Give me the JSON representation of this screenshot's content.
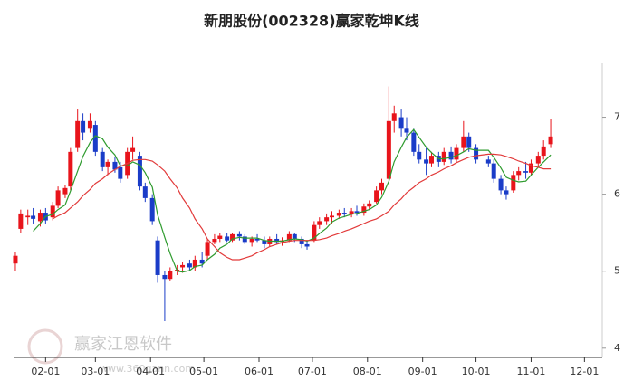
{
  "chart_data": {
    "type": "candlestick",
    "title": "新朋股份(002328)赢家乾坤K线",
    "watermark": "赢家江恩软件",
    "watermark_url": "www.360gann.com",
    "up_color": "#e8141b",
    "down_color": "#1a3cc8",
    "x": [
      "01-15",
      "01-18",
      "01-22",
      "01-25",
      "01-29",
      "02-01",
      "02-05",
      "02-08",
      "02-12",
      "02-15",
      "02-19",
      "02-22",
      "02-26",
      "03-01",
      "03-05",
      "03-08",
      "03-12",
      "03-15",
      "03-19",
      "03-22",
      "03-26",
      "03-29",
      "04-02",
      "04-05",
      "04-09",
      "04-12",
      "04-16",
      "04-19",
      "04-23",
      "04-26",
      "04-30",
      "05-03",
      "05-07",
      "05-10",
      "05-14",
      "05-17",
      "05-21",
      "05-24",
      "05-28",
      "05-31",
      "06-04",
      "06-07",
      "06-11",
      "06-14",
      "06-18",
      "06-21",
      "06-25",
      "06-28",
      "07-02",
      "07-05",
      "07-09",
      "07-12",
      "07-16",
      "07-19",
      "07-23",
      "07-26",
      "07-30",
      "08-02",
      "08-06",
      "08-09",
      "08-13",
      "08-16",
      "08-20",
      "08-23",
      "08-27",
      "08-30",
      "09-03",
      "09-06",
      "09-10",
      "09-13",
      "09-17",
      "09-20",
      "09-24",
      "09-27",
      "10-01",
      "10-08",
      "10-11",
      "10-15",
      "10-18",
      "10-22",
      "10-25",
      "10-29",
      "11-01",
      "11-05",
      "11-08",
      "11-12"
    ],
    "open": [
      5.1,
      5.55,
      5.7,
      5.72,
      5.65,
      5.76,
      5.7,
      5.85,
      6.0,
      6.1,
      6.6,
      6.95,
      6.85,
      6.9,
      6.55,
      6.35,
      6.42,
      6.35,
      6.25,
      6.55,
      6.5,
      6.1,
      5.95,
      5.4,
      4.95,
      4.9,
      5.0,
      5.05,
      5.1,
      5.05,
      5.15,
      5.2,
      5.38,
      5.42,
      5.45,
      5.4,
      5.48,
      5.45,
      5.38,
      5.42,
      5.4,
      5.35,
      5.42,
      5.38,
      5.4,
      5.48,
      5.42,
      5.35,
      5.4,
      5.6,
      5.65,
      5.7,
      5.72,
      5.76,
      5.74,
      5.78,
      5.76,
      5.84,
      5.9,
      6.05,
      6.2,
      6.95,
      7.0,
      6.85,
      6.8,
      6.55,
      6.45,
      6.4,
      6.5,
      6.42,
      6.55,
      6.45,
      6.6,
      6.75,
      6.6,
      6.45,
      6.4,
      6.2,
      6.05,
      6.05,
      6.25,
      6.3,
      6.28,
      6.4,
      6.5,
      6.65
    ],
    "high": [
      5.25,
      5.8,
      5.8,
      5.82,
      5.8,
      5.82,
      5.9,
      6.1,
      6.12,
      6.6,
      7.1,
      7.05,
      7.05,
      6.95,
      6.6,
      6.45,
      6.48,
      6.42,
      6.6,
      6.75,
      6.55,
      6.15,
      6.0,
      5.45,
      5.0,
      5.05,
      5.08,
      5.12,
      5.15,
      5.2,
      5.25,
      5.42,
      5.48,
      5.5,
      5.5,
      5.5,
      5.52,
      5.48,
      5.45,
      5.48,
      5.45,
      5.45,
      5.48,
      5.44,
      5.52,
      5.5,
      5.45,
      5.4,
      5.65,
      5.7,
      5.75,
      5.78,
      5.8,
      5.82,
      5.82,
      5.85,
      5.88,
      5.92,
      6.1,
      6.2,
      7.4,
      7.15,
      7.1,
      7.0,
      6.85,
      6.65,
      6.6,
      6.55,
      6.55,
      6.6,
      6.62,
      6.65,
      6.95,
      6.8,
      6.65,
      6.5,
      6.45,
      6.25,
      6.1,
      6.3,
      6.35,
      6.42,
      6.45,
      6.55,
      6.7,
      6.98
    ],
    "low": [
      5.0,
      5.5,
      5.6,
      5.62,
      5.58,
      5.62,
      5.66,
      5.82,
      5.95,
      6.05,
      6.55,
      6.7,
      6.8,
      6.5,
      6.3,
      6.25,
      6.28,
      6.15,
      6.2,
      6.45,
      6.05,
      5.9,
      5.6,
      4.85,
      4.35,
      4.88,
      4.95,
      4.98,
      5.0,
      5.0,
      5.05,
      5.15,
      5.35,
      5.38,
      5.38,
      5.38,
      5.4,
      5.35,
      5.32,
      5.38,
      5.3,
      5.32,
      5.35,
      5.33,
      5.38,
      5.38,
      5.3,
      5.28,
      5.38,
      5.55,
      5.6,
      5.62,
      5.68,
      5.7,
      5.7,
      5.72,
      5.72,
      5.8,
      5.88,
      6.0,
      6.18,
      6.8,
      6.75,
      6.7,
      6.5,
      6.4,
      6.25,
      6.35,
      6.35,
      6.38,
      6.4,
      6.42,
      6.55,
      6.55,
      6.4,
      6.35,
      6.15,
      6.0,
      5.93,
      6.02,
      6.18,
      6.2,
      6.25,
      6.35,
      6.45,
      6.6
    ],
    "close": [
      5.2,
      5.75,
      5.72,
      5.68,
      5.76,
      5.66,
      5.85,
      6.05,
      6.08,
      6.55,
      6.95,
      6.8,
      6.95,
      6.55,
      6.35,
      6.42,
      6.32,
      6.2,
      6.55,
      6.6,
      6.1,
      5.95,
      5.65,
      4.95,
      4.9,
      5.0,
      5.02,
      5.08,
      5.05,
      5.15,
      5.1,
      5.38,
      5.42,
      5.46,
      5.4,
      5.48,
      5.45,
      5.38,
      5.42,
      5.4,
      5.35,
      5.42,
      5.38,
      5.4,
      5.48,
      5.42,
      5.35,
      5.32,
      5.6,
      5.65,
      5.7,
      5.72,
      5.76,
      5.74,
      5.78,
      5.76,
      5.84,
      5.88,
      6.05,
      6.15,
      6.95,
      7.05,
      6.85,
      6.8,
      6.55,
      6.45,
      6.4,
      6.5,
      6.42,
      6.55,
      6.45,
      6.6,
      6.75,
      6.6,
      6.45,
      6.4,
      6.2,
      6.05,
      6.0,
      6.25,
      6.3,
      6.28,
      6.4,
      6.5,
      6.62,
      6.75
    ],
    "lines": [
      {
        "color": "#2e9b2e",
        "values": [
          null,
          null,
          null,
          5.52,
          5.62,
          5.71,
          5.74,
          5.8,
          5.86,
          6.04,
          6.3,
          6.49,
          6.67,
          6.76,
          6.72,
          6.61,
          6.51,
          6.37,
          6.37,
          6.42,
          6.38,
          6.28,
          6.09,
          5.73,
          5.44,
          5.23,
          5.0,
          4.99,
          5.01,
          5.06,
          5.08,
          5.15,
          5.22,
          5.3,
          5.35,
          5.42,
          5.44,
          5.43,
          5.43,
          5.43,
          5.4,
          5.39,
          5.39,
          5.39,
          5.41,
          5.42,
          5.41,
          5.39,
          5.43,
          5.49,
          5.56,
          5.64,
          5.69,
          5.71,
          5.74,
          5.75,
          5.78,
          5.8,
          5.86,
          5.96,
          6.17,
          6.42,
          6.61,
          6.74,
          6.84,
          6.74,
          6.61,
          6.54,
          6.46,
          6.46,
          6.48,
          6.5,
          6.55,
          6.59,
          6.57,
          6.57,
          6.48,
          6.34,
          6.22,
          6.18,
          6.16,
          6.17,
          6.25,
          6.35,
          6.42,
          6.51
        ]
      },
      {
        "color": "#e23a3a",
        "values": [
          null,
          null,
          null,
          null,
          null,
          null,
          5.68,
          5.72,
          5.76,
          5.82,
          5.9,
          5.98,
          6.06,
          6.14,
          6.2,
          6.26,
          6.32,
          6.36,
          6.4,
          6.44,
          6.45,
          6.45,
          6.43,
          6.38,
          6.3,
          6.2,
          6.08,
          5.95,
          5.82,
          5.68,
          5.55,
          5.42,
          5.32,
          5.24,
          5.18,
          5.15,
          5.15,
          5.17,
          5.2,
          5.24,
          5.28,
          5.32,
          5.35,
          5.37,
          5.39,
          5.4,
          5.4,
          5.4,
          5.4,
          5.41,
          5.43,
          5.46,
          5.49,
          5.52,
          5.55,
          5.58,
          5.62,
          5.65,
          5.68,
          5.72,
          5.78,
          5.86,
          5.94,
          6.02,
          6.09,
          6.15,
          6.2,
          6.25,
          6.29,
          6.33,
          6.37,
          6.41,
          6.45,
          6.48,
          6.5,
          6.52,
          6.52,
          6.51,
          6.49,
          6.46,
          6.43,
          6.4,
          6.37,
          6.35,
          6.33,
          6.33
        ]
      }
    ],
    "xlim": [
      "01-14",
      "12-11"
    ],
    "xticks": [
      "02-01",
      "03-01",
      "04-01",
      "05-01",
      "06-01",
      "07-01",
      "08-01",
      "09-01",
      "10-01",
      "11-01",
      "12-01"
    ],
    "ylim": [
      3.88,
      7.7
    ],
    "yticks": [
      4,
      5,
      6,
      7
    ]
  }
}
